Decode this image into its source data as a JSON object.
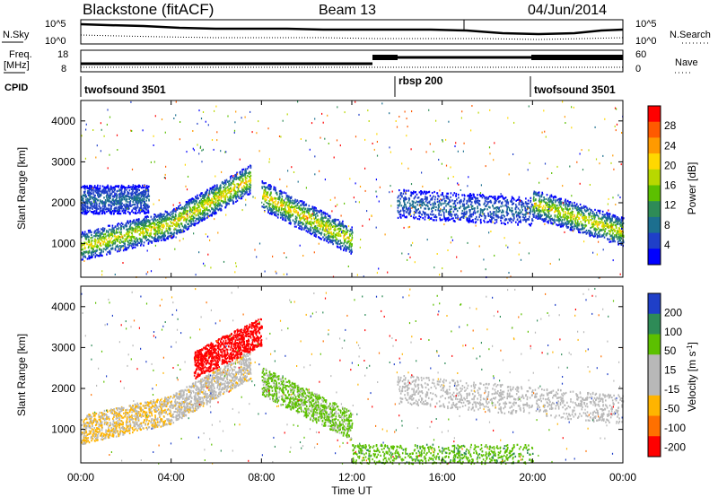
{
  "header": {
    "station": "Blackstone (fitACF)",
    "beam": "Beam 13",
    "date": "04/Jun/2014"
  },
  "side_labels": {
    "nsky": "N.Sky",
    "freq_line1": "Freq.",
    "freq_line2": "[MHz]",
    "cpid": "CPID",
    "nsearch": "N.Search",
    "nave": "Nave"
  },
  "noise_panel": {
    "left_top": "10^5",
    "left_bottom": "10^0",
    "right_top": "10^5",
    "right_bottom": "10^0"
  },
  "freq_panel": {
    "left_top": "18",
    "left_bottom": "8",
    "right_top": "60",
    "right_bottom": "0"
  },
  "cpid_segments": [
    {
      "label": "twofsound 3501",
      "start": "00:00"
    },
    {
      "label": "rbsp 200",
      "start": "14:00"
    },
    {
      "label": "twofsound 3501",
      "start": "20:00"
    }
  ],
  "xaxis": {
    "label": "Time UT",
    "ticks": [
      "00:00",
      "04:00",
      "08:00",
      "12:00",
      "16:00",
      "20:00",
      "00:00"
    ]
  },
  "chart_data": [
    {
      "type": "heatmap",
      "title": "",
      "xlabel": "Time UT",
      "ylabel": "Slant Range [km]",
      "ylim": [
        180,
        4500
      ],
      "xlim": [
        "00:00",
        "24:00"
      ],
      "yticks": [
        1000,
        2000,
        3000,
        4000
      ],
      "colorbar": {
        "label": "Power [dB]",
        "ticks": [
          "28",
          "24",
          "20",
          "16",
          "12",
          "8",
          "4"
        ],
        "colors": [
          "#ff0000",
          "#ff5a00",
          "#ff9a00",
          "#ffd800",
          "#b8d800",
          "#5cc000",
          "#2e8b57",
          "#1c6f8f",
          "#1f3fc8",
          "#0000ff"
        ]
      },
      "bands": [
        {
          "t0": 0,
          "t1": 4,
          "r_start": 950,
          "r_end": 1500,
          "peak_db": 22
        },
        {
          "t0": 4,
          "t1": 7.5,
          "r_start": 1500,
          "r_end": 2600,
          "peak_db": 24
        },
        {
          "t0": 8,
          "t1": 12,
          "r_start": 2200,
          "r_end": 1100,
          "peak_db": 24
        },
        {
          "t0": 0,
          "t1": 3,
          "r_start": 2100,
          "r_end": 2100,
          "peak_db": 8
        },
        {
          "t0": 14,
          "t1": 20,
          "r_start": 2000,
          "r_end": 1800,
          "peak_db": 8
        },
        {
          "t0": 20,
          "t1": 24,
          "r_start": 2000,
          "r_end": 1300,
          "peak_db": 22
        }
      ]
    },
    {
      "type": "heatmap",
      "title": "",
      "xlabel": "Time UT",
      "ylabel": "Slant Range [km]",
      "ylim": [
        180,
        4500
      ],
      "xlim": [
        "00:00",
        "24:00"
      ],
      "yticks": [
        1000,
        2000,
        3000,
        4000
      ],
      "colorbar": {
        "label": "Velocity [m s^-1]",
        "ticks": [
          "200",
          "100",
          "50",
          "15",
          "-15",
          "-50",
          "-100",
          "-200"
        ],
        "colors": [
          "#1f3fc8",
          "#2e8b57",
          "#5cc000",
          "#b8b8b8",
          "#b8b8b8",
          "#ffb400",
          "#ff7000",
          "#ff0000"
        ]
      },
      "bands": [
        {
          "t0": 0,
          "t1": 4,
          "r_start": 1000,
          "r_end": 1500,
          "velocity": -30
        },
        {
          "t0": 4,
          "t1": 7.5,
          "r_start": 1500,
          "r_end": 2600,
          "velocity": -15
        },
        {
          "t0": 5,
          "t1": 8,
          "r_start": 2600,
          "r_end": 3400,
          "velocity": -200
        },
        {
          "t0": 8,
          "t1": 12,
          "r_start": 2200,
          "r_end": 1100,
          "velocity": 40
        },
        {
          "t0": 14,
          "t1": 24,
          "r_start": 2000,
          "r_end": 1500,
          "velocity": 0
        },
        {
          "t0": 12,
          "t1": 20,
          "r_start": 300,
          "r_end": 300,
          "velocity": 60
        }
      ]
    }
  ],
  "colors": {
    "axis": "#000000",
    "background": "#ffffff"
  }
}
